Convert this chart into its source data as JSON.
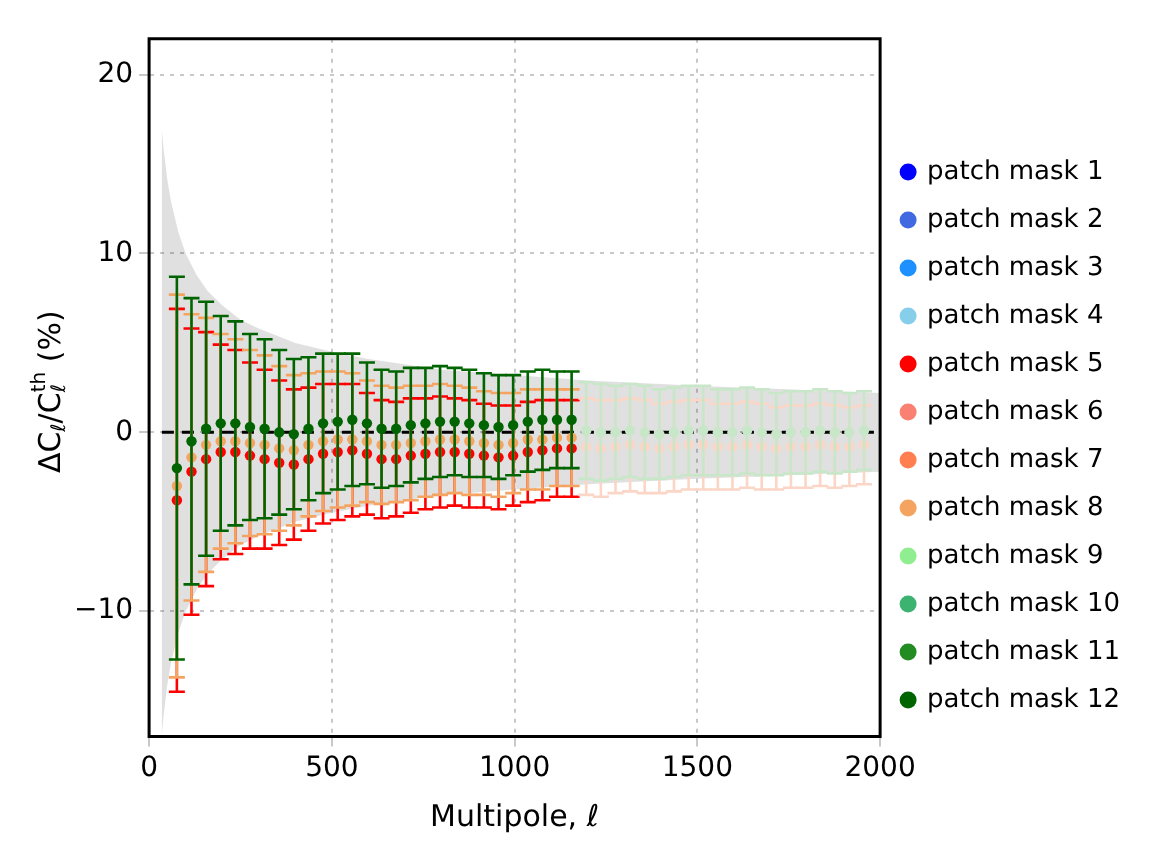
{
  "chart_data": {
    "type": "scatter",
    "xlabel": "Multipole, ℓ",
    "ylabel": "ΔC$_{ℓ}$/C$_{ℓ}$$^{th}$ (%)",
    "x": [
      76,
      116,
      156,
      196,
      236,
      276,
      316,
      356,
      396,
      436,
      476,
      516,
      556,
      596,
      636,
      676,
      716,
      756,
      796,
      836,
      876,
      916,
      956,
      996,
      1036,
      1076,
      1116,
      1156
    ],
    "xlim": [
      0,
      2000
    ],
    "ylim": [
      -17,
      22
    ],
    "xticks": [
      0,
      500,
      1000,
      1500,
      2000
    ],
    "yticks": [
      -10,
      0,
      10,
      20
    ],
    "grid": true,
    "legend": "right",
    "marker": "circle",
    "series": [
      {
        "name": "patch mask 1",
        "color": "#0000ff",
        "values": [
          null,
          null,
          null,
          null,
          null,
          null,
          null,
          null,
          null,
          null,
          null,
          null,
          null,
          null,
          null,
          null,
          null,
          null,
          null,
          null,
          null,
          null,
          null,
          null,
          null,
          null,
          null,
          null
        ]
      },
      {
        "name": "patch mask 2",
        "color": "#4169e1",
        "values": [
          null,
          null,
          null,
          null,
          null,
          null,
          null,
          null,
          null,
          null,
          null,
          null,
          null,
          null,
          null,
          null,
          null,
          null,
          null,
          null,
          null,
          null,
          null,
          null,
          null,
          null,
          null,
          null
        ]
      },
      {
        "name": "patch mask 3",
        "color": "#1e90ff",
        "values": [
          null,
          null,
          null,
          null,
          null,
          null,
          null,
          null,
          null,
          null,
          null,
          null,
          null,
          null,
          null,
          null,
          null,
          null,
          null,
          null,
          null,
          null,
          null,
          null,
          null,
          null,
          null,
          null
        ]
      },
      {
        "name": "patch mask 4",
        "color": "#87ceeb",
        "values": [
          null,
          null,
          null,
          null,
          null,
          null,
          null,
          null,
          null,
          null,
          null,
          null,
          null,
          null,
          null,
          null,
          null,
          null,
          null,
          null,
          null,
          null,
          null,
          null,
          null,
          null,
          null,
          null
        ]
      },
      {
        "name": "patch mask 5",
        "color": "#ff0000",
        "values": [
          -3.8,
          -2.2,
          -1.5,
          -1.1,
          -1.1,
          -1.3,
          -1.5,
          -1.7,
          -1.8,
          -1.5,
          -1.2,
          -1.1,
          -1.0,
          -1.2,
          -1.5,
          -1.5,
          -1.3,
          -1.2,
          -1.1,
          -1.1,
          -1.2,
          -1.3,
          -1.4,
          -1.3,
          -1.1,
          -1.0,
          -0.9,
          -0.9
        ],
        "errors": [
          10.7,
          8.0,
          7.1,
          6.0,
          5.7,
          5.2,
          5.0,
          4.6,
          4.2,
          4.0,
          3.9,
          3.8,
          3.7,
          3.4,
          3.3,
          3.2,
          3.2,
          3.1,
          3.1,
          3.0,
          3.0,
          2.9,
          2.9,
          2.8,
          2.8,
          2.8,
          2.7,
          2.7
        ]
      },
      {
        "name": "patch mask 6",
        "color": "#fa8072",
        "values": [
          null,
          null,
          null,
          null,
          null,
          null,
          null,
          null,
          null,
          null,
          null,
          null,
          null,
          null,
          null,
          null,
          null,
          null,
          null,
          null,
          null,
          null,
          null,
          null,
          null,
          null,
          null,
          null
        ]
      },
      {
        "name": "patch mask 7",
        "color": "#ff7f50",
        "values": [
          null,
          null,
          null,
          null,
          null,
          null,
          null,
          null,
          null,
          null,
          null,
          null,
          null,
          null,
          null,
          null,
          null,
          null,
          null,
          null,
          null,
          null,
          null,
          null,
          null,
          null,
          null,
          null
        ]
      },
      {
        "name": "patch mask 8",
        "color": "#f4a460",
        "values": [
          -3.0,
          -1.4,
          -0.7,
          -0.5,
          -0.5,
          -0.6,
          -0.7,
          -0.9,
          -1.0,
          -0.7,
          -0.5,
          -0.4,
          -0.4,
          -0.5,
          -0.7,
          -0.7,
          -0.6,
          -0.5,
          -0.4,
          -0.4,
          -0.5,
          -0.6,
          -0.7,
          -0.6,
          -0.4,
          -0.4,
          -0.3,
          -0.3
        ],
        "errors": [
          10.7,
          8.0,
          7.1,
          6.0,
          5.7,
          5.2,
          5.0,
          4.6,
          4.2,
          4.0,
          3.9,
          3.8,
          3.7,
          3.4,
          3.3,
          3.2,
          3.2,
          3.1,
          3.1,
          3.0,
          3.0,
          2.9,
          2.9,
          2.8,
          2.8,
          2.8,
          2.7,
          2.7
        ]
      },
      {
        "name": "patch mask 9",
        "color": "#90ee90",
        "values": [
          null,
          null,
          null,
          null,
          null,
          null,
          null,
          null,
          null,
          null,
          null,
          null,
          null,
          null,
          null,
          null,
          null,
          null,
          null,
          null,
          null,
          null,
          null,
          null,
          null,
          null,
          null,
          null
        ]
      },
      {
        "name": "patch mask 10",
        "color": "#3cb371",
        "values": [
          null,
          null,
          null,
          null,
          null,
          null,
          null,
          null,
          null,
          null,
          null,
          null,
          null,
          null,
          null,
          null,
          null,
          null,
          null,
          null,
          null,
          null,
          null,
          null,
          null,
          null,
          null,
          null
        ]
      },
      {
        "name": "patch mask 11",
        "color": "#228b22",
        "values": [
          null,
          null,
          null,
          null,
          null,
          null,
          null,
          null,
          null,
          null,
          null,
          null,
          null,
          null,
          null,
          null,
          null,
          null,
          null,
          null,
          null,
          null,
          null,
          null,
          null,
          null,
          null,
          null
        ]
      },
      {
        "name": "patch mask 12",
        "color": "#006400",
        "values": [
          -2.0,
          -0.5,
          0.2,
          0.5,
          0.5,
          0.3,
          0.2,
          0.0,
          -0.1,
          0.2,
          0.5,
          0.6,
          0.7,
          0.5,
          0.2,
          0.2,
          0.4,
          0.5,
          0.6,
          0.6,
          0.5,
          0.4,
          0.3,
          0.4,
          0.6,
          0.7,
          0.7,
          0.7
        ],
        "errors": [
          10.7,
          8.0,
          7.1,
          6.0,
          5.7,
          5.2,
          5.0,
          4.6,
          4.2,
          4.0,
          3.9,
          3.8,
          3.7,
          3.4,
          3.3,
          3.2,
          3.2,
          3.1,
          3.1,
          3.0,
          3.0,
          2.9,
          2.9,
          2.8,
          2.8,
          2.8,
          2.7,
          2.7
        ]
      },
      {
        "color": "#fbd5c5",
        "x": [
          1196,
          1236,
          1276,
          1316,
          1356,
          1396,
          1436,
          1476,
          1516,
          1556,
          1596,
          1636,
          1676,
          1716,
          1756,
          1796,
          1836,
          1876,
          1916,
          1956
        ],
        "values": [
          -0.8,
          -0.9,
          -0.8,
          -0.7,
          -0.8,
          -0.9,
          -0.8,
          -0.7,
          -0.7,
          -0.8,
          -0.8,
          -0.7,
          -0.8,
          -0.9,
          -0.8,
          -0.8,
          -0.7,
          -0.8,
          -0.8,
          -0.7
        ],
        "errors": [
          2.7,
          2.7,
          2.6,
          2.6,
          2.6,
          2.5,
          2.5,
          2.5,
          2.5,
          2.4,
          2.4,
          2.4,
          2.4,
          2.3,
          2.3,
          2.3,
          2.3,
          2.3,
          2.2,
          2.2
        ]
      },
      {
        "color": "#c8e6c8",
        "x": [
          1196,
          1236,
          1276,
          1316,
          1356,
          1396,
          1436,
          1476,
          1516,
          1556,
          1596,
          1636,
          1676,
          1716,
          1756,
          1796,
          1836,
          1876,
          1916,
          1956
        ],
        "values": [
          0.1,
          0.0,
          0.0,
          0.1,
          0.0,
          -0.1,
          0.0,
          0.1,
          0.1,
          0.0,
          0.0,
          0.1,
          0.0,
          -0.1,
          0.0,
          0.0,
          0.1,
          0.0,
          0.0,
          0.1
        ],
        "errors": [
          2.7,
          2.7,
          2.6,
          2.6,
          2.6,
          2.5,
          2.5,
          2.5,
          2.5,
          2.4,
          2.4,
          2.4,
          2.4,
          2.3,
          2.3,
          2.3,
          2.3,
          2.3,
          2.2,
          2.2
        ]
      },
      {
        "type": "line",
        "marker": "none",
        "color": "#000000",
        "line_style": "dashed",
        "x": [
          35,
          40,
          50,
          60,
          80,
          100,
          130,
          160,
          200,
          250,
          300,
          400,
          500,
          600,
          800,
          1000,
          1200,
          1500,
          2000
        ],
        "values": [
          0,
          0,
          0,
          0,
          0,
          0,
          0,
          0,
          0,
          0,
          0,
          0,
          0,
          0,
          0,
          0,
          0,
          0,
          0
        ],
        "upper": [
          16.9,
          15.8,
          14.1,
          12.9,
          11.2,
          10.0,
          8.8,
          7.9,
          7.1,
          6.3,
          5.8,
          5.0,
          4.5,
          4.1,
          3.5,
          3.2,
          2.9,
          2.6,
          2.2
        ],
        "lower": [
          -16.9,
          -15.8,
          -14.1,
          -12.9,
          -11.2,
          -10.0,
          -8.8,
          -7.9,
          -7.1,
          -6.3,
          -5.8,
          -5.0,
          -4.5,
          -4.1,
          -3.5,
          -3.2,
          -2.9,
          -2.6,
          -2.2
        ]
      }
    ]
  }
}
